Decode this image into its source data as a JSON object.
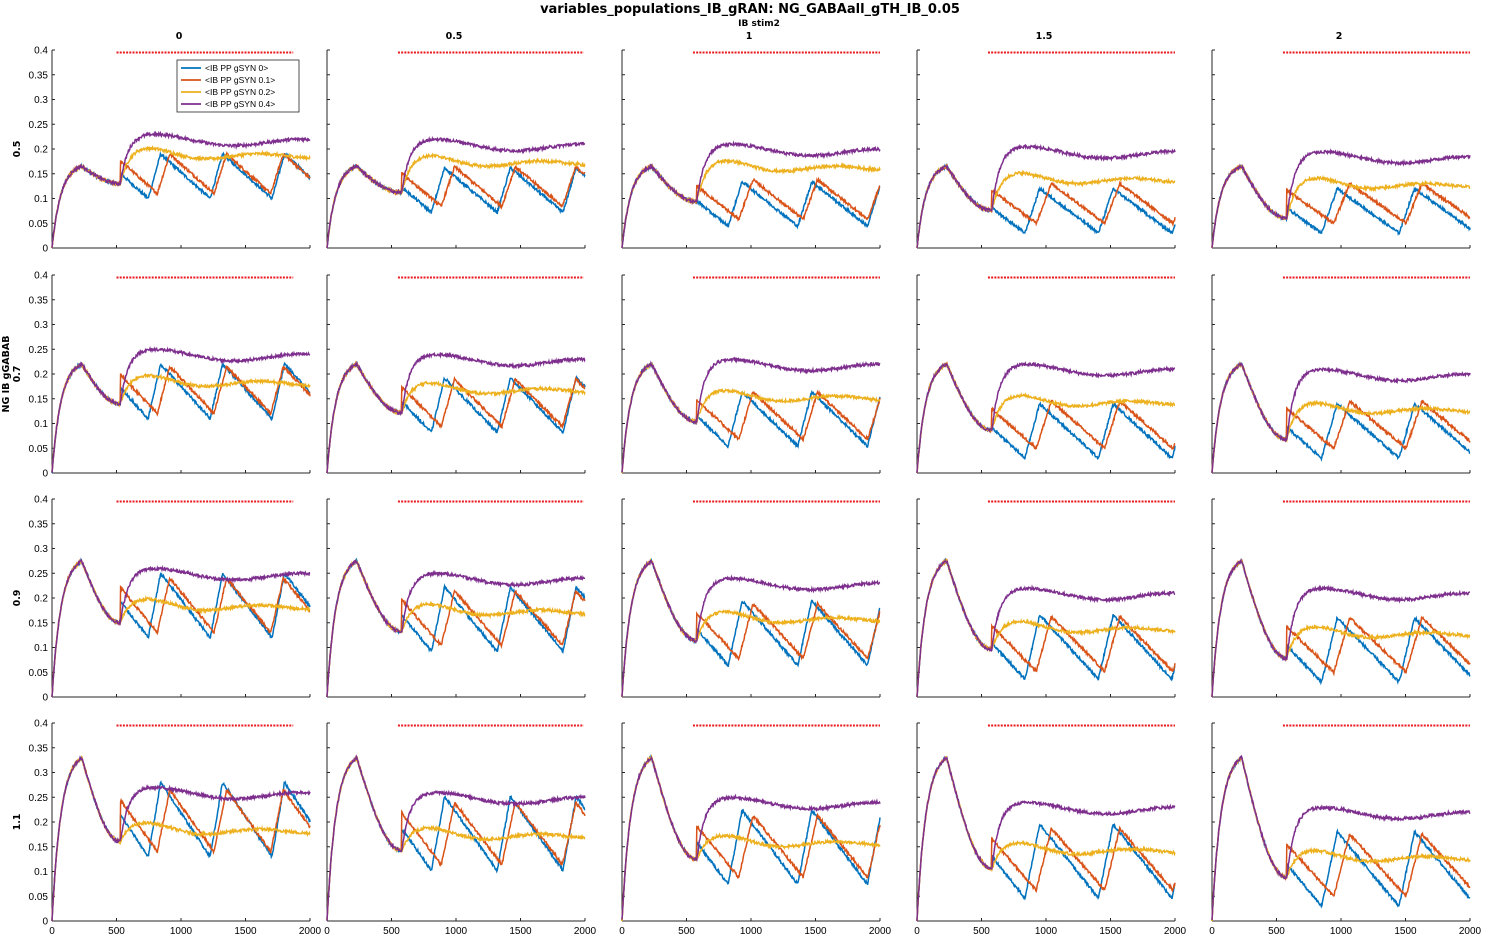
{
  "figure": {
    "title": "variables_populations_IB_gRAN: NG_GABAall_gTH_IB_0.05",
    "col_group_label": "IB stim2",
    "row_group_label": "NG IB gGABAB"
  },
  "chart_data": {
    "type": "line",
    "layout": "small-multiples 4x5",
    "columns": [
      "0",
      "0.5",
      "1",
      "1.5",
      "2"
    ],
    "rows": [
      "0.5",
      "0.7",
      "0.9",
      "1.1"
    ],
    "xlim": [
      0,
      2000
    ],
    "ylim": [
      0,
      0.4
    ],
    "xticks": [
      "0",
      "500",
      "1000",
      "1500",
      "2000"
    ],
    "yticks": [
      "0",
      "0.05",
      "0.1",
      "0.15",
      "0.2",
      "0.25",
      "0.3",
      "0.35",
      "0.4"
    ],
    "grid": false,
    "legend": {
      "position": "top-left, panel row 1 col 1",
      "entries": [
        "<IB PP gSYN 0>",
        "<IB PP gSYN 0.1>",
        "<IB PP gSYN 0.2>",
        "<IB PP gSYN 0.4>"
      ]
    },
    "series_colors": [
      "#0072BD",
      "#D95319",
      "#EDB120",
      "#7E2F8E"
    ],
    "stim_marker": {
      "color": "#e8191e",
      "y": 0.395,
      "note": "dotted red stimulus bar; start shifts with column"
    },
    "stim_intervals": [
      [
        500,
        1870
      ],
      [
        550,
        1990
      ],
      [
        550,
        2000
      ],
      [
        550,
        2000
      ],
      [
        550,
        2000
      ]
    ],
    "peak_onset_ms": [
      230,
      230,
      230,
      230
    ],
    "peak_values_by_row": [
      0.165,
      0.22,
      0.275,
      0.33
    ],
    "panels_row_summary": [
      {
        "row": "0.5",
        "purple_plateau": [
          0.21,
          0.2,
          0.19,
          0.185,
          0.175
        ],
        "yellow_plateau": [
          0.18,
          0.165,
          0.155,
          0.13,
          0.12
        ]
      },
      {
        "row": "0.7",
        "purple_plateau": [
          0.23,
          0.22,
          0.21,
          0.2,
          0.19
        ],
        "yellow_plateau": [
          0.175,
          0.16,
          0.145,
          0.135,
          0.12
        ]
      },
      {
        "row": "0.9",
        "purple_plateau": [
          0.24,
          0.23,
          0.22,
          0.2,
          0.2
        ],
        "yellow_plateau": [
          0.175,
          0.165,
          0.15,
          0.13,
          0.12
        ]
      },
      {
        "row": "1.1",
        "purple_plateau": [
          0.25,
          0.24,
          0.23,
          0.22,
          0.21
        ],
        "yellow_plateau": [
          0.175,
          0.165,
          0.15,
          0.135,
          0.12
        ]
      }
    ]
  }
}
